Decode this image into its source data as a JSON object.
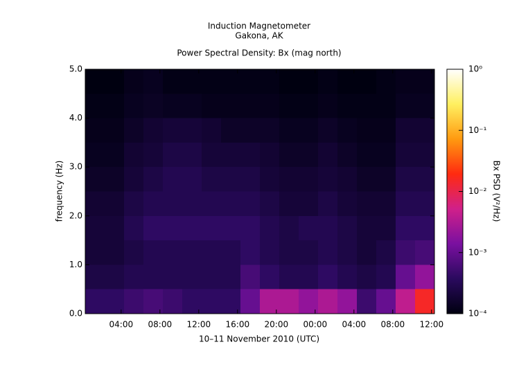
{
  "chart_data": {
    "type": "heatmap",
    "title": "Induction Magnetometer",
    "subtitle": "Gakona, AK",
    "plot_title": "Power Spectral Density: Bx (mag north)",
    "x_label": "10–11 November 2010 (UTC)",
    "y_label": "frequency (Hz)",
    "colorbar_label": "Bx PSD (V²/Hz)",
    "xlim": [
      0.3,
      36.3
    ],
    "ylim": [
      0,
      5
    ],
    "xticks": [
      {
        "value": 4,
        "label": "04:00"
      },
      {
        "value": 8,
        "label": "08:00"
      },
      {
        "value": 12,
        "label": "12:00"
      },
      {
        "value": 16,
        "label": "16:00"
      },
      {
        "value": 20,
        "label": "20:00"
      },
      {
        "value": 24,
        "label": "00:00"
      },
      {
        "value": 28,
        "label": "04:00"
      },
      {
        "value": 32,
        "label": "08:00"
      },
      {
        "value": 36,
        "label": "12:00"
      }
    ],
    "yticks": [
      {
        "value": 0,
        "label": "0.0"
      },
      {
        "value": 1,
        "label": "1.0"
      },
      {
        "value": 2,
        "label": "2.0"
      },
      {
        "value": 3,
        "label": "3.0"
      },
      {
        "value": 4,
        "label": "4.0"
      },
      {
        "value": 5,
        "label": "5.0"
      }
    ],
    "clim": [
      0.0001,
      1
    ],
    "cticks": [
      {
        "value": 0.0001,
        "label": "10⁻⁴"
      },
      {
        "value": 0.001,
        "label": "10⁻³"
      },
      {
        "value": 0.01,
        "label": "10⁻²"
      },
      {
        "value": 0.1,
        "label": "10⁻¹"
      },
      {
        "value": 1,
        "label": "10⁰"
      }
    ],
    "color_log": true,
    "colormap": [
      "#000010",
      "#2a0a5e",
      "#7a10a0",
      "#d0208a",
      "#ff2a10",
      "#ff9a10",
      "#fff060",
      "#ffffff"
    ],
    "x_bins": [
      0.3,
      2.3,
      4.3,
      6.3,
      8.3,
      10.3,
      12.3,
      14.3,
      16.3,
      18.3,
      20.3,
      22.3,
      24.3,
      26.3,
      28.3,
      30.3,
      32.3,
      34.3,
      36.3
    ],
    "y_bins": [
      0,
      0.5,
      1,
      1.5,
      2,
      2.5,
      3,
      3.5,
      4,
      4.5,
      5
    ],
    "values": [
      [
        0.0004,
        0.0004,
        0.0005,
        0.0006,
        0.0005,
        0.0004,
        0.0004,
        0.0004,
        0.001,
        0.003,
        0.003,
        0.002,
        0.003,
        0.002,
        0.0005,
        0.001,
        0.004,
        0.015
      ],
      [
        0.00025,
        0.00025,
        0.0003,
        0.0003,
        0.0003,
        0.0003,
        0.0003,
        0.0003,
        0.0006,
        0.0004,
        0.0003,
        0.0003,
        0.0004,
        0.0003,
        0.00025,
        0.0003,
        0.001,
        0.002
      ],
      [
        0.0002,
        0.0002,
        0.00025,
        0.0003,
        0.0003,
        0.0003,
        0.0003,
        0.0003,
        0.0004,
        0.0003,
        0.00025,
        0.00025,
        0.0003,
        0.00025,
        0.0002,
        0.00025,
        0.0005,
        0.0006
      ],
      [
        0.0002,
        0.0002,
        0.0003,
        0.0004,
        0.0004,
        0.0004,
        0.0004,
        0.0004,
        0.0004,
        0.0003,
        0.00025,
        0.0003,
        0.0003,
        0.00025,
        0.0002,
        0.0002,
        0.0004,
        0.0004
      ],
      [
        0.00018,
        0.00018,
        0.00025,
        0.0003,
        0.0003,
        0.0003,
        0.0003,
        0.0003,
        0.0003,
        0.00025,
        0.0002,
        0.0002,
        0.00025,
        0.0002,
        0.00018,
        0.00018,
        0.0003,
        0.0003
      ],
      [
        0.00015,
        0.00015,
        0.0002,
        0.00025,
        0.0003,
        0.0003,
        0.00025,
        0.00025,
        0.00025,
        0.0002,
        0.00018,
        0.00018,
        0.0002,
        0.00018,
        0.00015,
        0.00015,
        0.00025,
        0.00025
      ],
      [
        0.00013,
        0.00013,
        0.00018,
        0.0002,
        0.00025,
        0.00025,
        0.0002,
        0.0002,
        0.0002,
        0.00018,
        0.00015,
        0.00015,
        0.00018,
        0.00015,
        0.00013,
        0.00013,
        0.0002,
        0.0002
      ],
      [
        0.00012,
        0.00012,
        0.00015,
        0.00018,
        0.0002,
        0.0002,
        0.00018,
        0.00015,
        0.00015,
        0.00015,
        0.00013,
        0.00013,
        0.00015,
        0.00013,
        0.00012,
        0.00012,
        0.00018,
        0.00018
      ],
      [
        0.00011,
        0.00011,
        0.00013,
        0.00014,
        0.00013,
        0.00013,
        0.00012,
        0.00012,
        0.00012,
        0.00012,
        0.00011,
        0.00011,
        0.00012,
        0.00011,
        0.00011,
        0.00011,
        0.00013,
        0.00013
      ],
      [
        0.0001,
        0.0001,
        0.00012,
        0.00013,
        0.00011,
        0.00011,
        0.00011,
        0.00011,
        0.00011,
        0.00011,
        0.0001,
        0.0001,
        0.00011,
        0.0001,
        0.0001,
        0.00011,
        0.00012,
        0.00012
      ]
    ]
  }
}
